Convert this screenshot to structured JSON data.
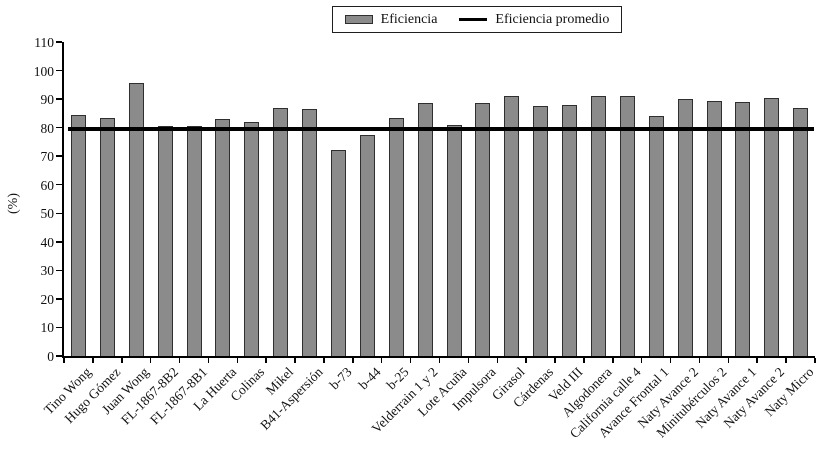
{
  "chart_data": {
    "type": "bar",
    "title": "",
    "xlabel": "",
    "ylabel": "(%)",
    "ylim": [
      0,
      110
    ],
    "ytick_step": 10,
    "grid": false,
    "legend_position": "top-center",
    "categories": [
      "Tino Wong",
      "Hugo Gómez",
      "Juan Wong",
      "FL-1867-8B2",
      "FL-1867-8B1",
      "La Huerta",
      "Colinas",
      "Mikel",
      "B41-Aspersión",
      "b-73",
      "b-44",
      "b-25",
      "Velderrain 1 y 2",
      "Lote Acuña",
      "Impulsora",
      "Girasol",
      "Cárdenas",
      "Veld III",
      "Algodonera",
      "California calle 4",
      "Avance Frontal 1",
      "Naty Avance 2",
      "Minitubérculos 2",
      "Naty Avance 1",
      "Naty Avance 2",
      "Naty Micro"
    ],
    "series": [
      {
        "name": "Eficiencia",
        "type": "bar",
        "values": [
          84.5,
          83.5,
          95.5,
          80.5,
          80.5,
          83,
          82,
          87,
          86.5,
          72,
          77.5,
          83.5,
          88.5,
          81,
          88.5,
          91,
          87.5,
          88,
          91,
          91,
          84,
          90,
          89.5,
          89,
          90.5,
          87
        ]
      },
      {
        "name": "Eficiencia promedio",
        "type": "line",
        "value": 79.5
      }
    ],
    "colors": {
      "bar_fill": "#8B8B8B",
      "bar_border": "#2F2F2F",
      "avg_line": "#000000",
      "axis": "#000000",
      "text": "#111111",
      "background": "#FFFFFF"
    }
  }
}
